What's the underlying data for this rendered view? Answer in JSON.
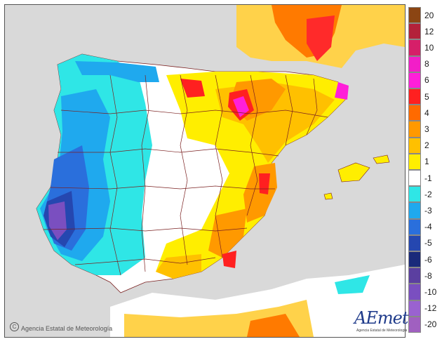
{
  "map": {
    "credit": "Agencia Estatal de Meteorología",
    "copyright_symbol": "C",
    "logo_text": "AEmet",
    "logo_subtext": "Agencia Estatal de Meteorología"
  },
  "legend": {
    "labels": [
      "20",
      "12",
      "10",
      "8",
      "6",
      "5",
      "4",
      "3",
      "2",
      "1",
      "-1",
      "-2",
      "-3",
      "-4",
      "-5",
      "-6",
      "-8",
      "-10",
      "-12",
      "-20"
    ],
    "colors": [
      "#8b4513",
      "#b3213a",
      "#d61f69",
      "#f21ec8",
      "#ff1fd9",
      "#ff2020",
      "#ff6a00",
      "#ff9900",
      "#ffc000",
      "#ffee00",
      "#ffffff",
      "#2fe6e6",
      "#1fa9ee",
      "#2a6fdc",
      "#2547b0",
      "#1a2a7a",
      "#5b3fa0",
      "#7a4fc0",
      "#9a62d0",
      "#a060c0"
    ]
  }
}
